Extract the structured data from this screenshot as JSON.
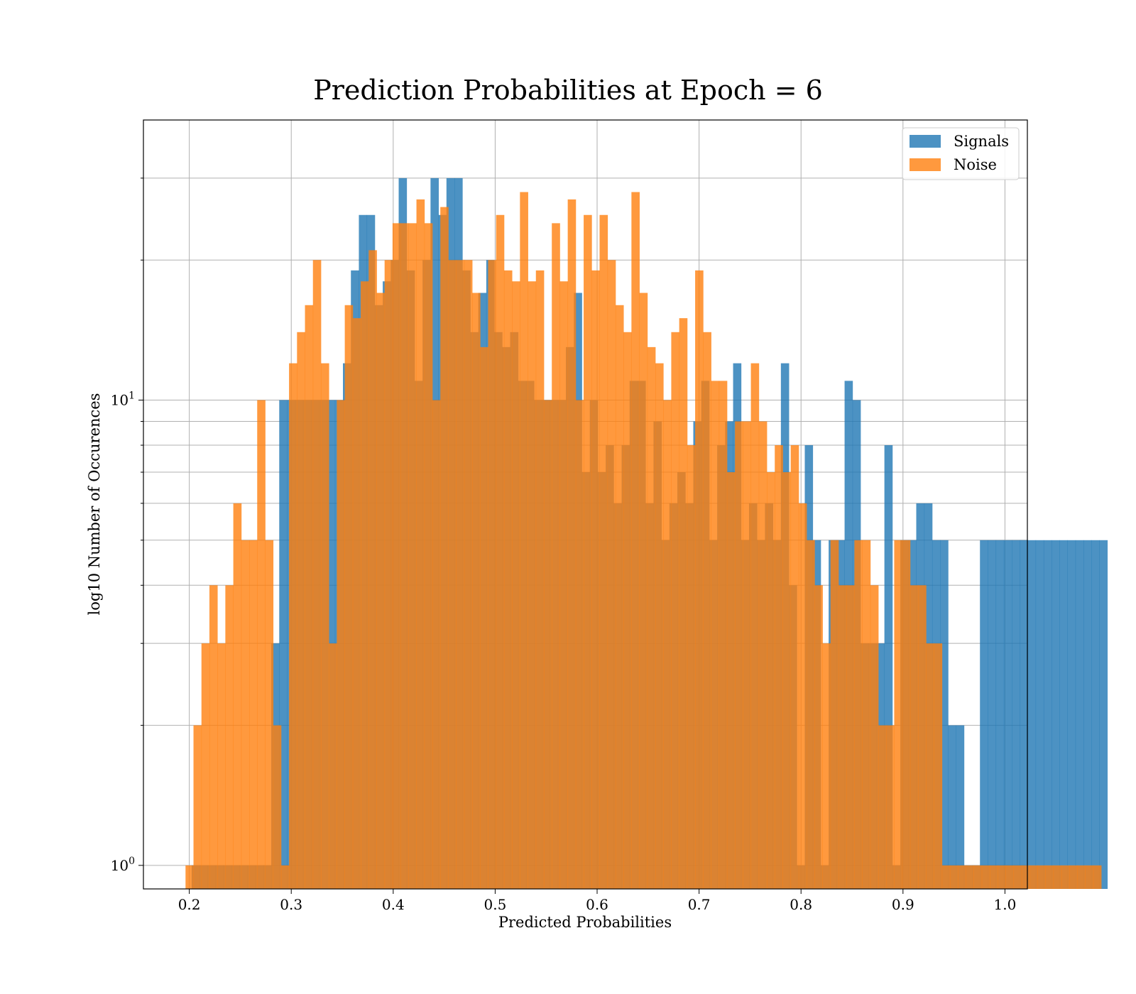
{
  "chart_data": {
    "type": "bar",
    "title": "Prediction Probabilities at Epoch = 6",
    "xlabel": "Predicted Probabilities",
    "ylabel": "log10 Number of Occurences",
    "xlim": [
      0.155,
      1.022
    ],
    "ylim": [
      0.89,
      40
    ],
    "yscale": "log",
    "grid": true,
    "legend_placement": "top-right",
    "x_ticks": [
      {
        "value": 0.2,
        "label": "0.2"
      },
      {
        "value": 0.3,
        "label": "0.3"
      },
      {
        "value": 0.4,
        "label": "0.4"
      },
      {
        "value": 0.5,
        "label": "0.5"
      },
      {
        "value": 0.6,
        "label": "0.6"
      },
      {
        "value": 0.7,
        "label": "0.7"
      },
      {
        "value": 0.8,
        "label": "0.8"
      },
      {
        "value": 0.9,
        "label": "0.9"
      },
      {
        "value": 1.0,
        "label": "1.0"
      }
    ],
    "y_major_ticks": [
      {
        "value": 1,
        "base": "10",
        "exp": "0"
      },
      {
        "value": 10,
        "base": "10",
        "exp": "1"
      }
    ],
    "y_minor_ticks": [
      2,
      3,
      4,
      5,
      6,
      7,
      8,
      9,
      20,
      30
    ],
    "series": [
      {
        "name": "Signals",
        "color": "#1f77b4",
        "opacity": 0.8,
        "bin_start": 0.2023,
        "bin_width": 0.00781,
        "values": [
          1,
          1,
          1,
          1,
          1,
          1,
          1,
          1,
          1,
          1,
          3,
          10,
          10,
          10,
          10,
          10,
          10,
          10,
          10,
          12,
          19,
          25,
          25,
          16,
          18,
          20,
          30,
          19,
          11,
          20,
          30,
          25,
          30,
          30,
          19,
          14,
          17,
          20,
          14,
          13,
          14,
          11,
          11,
          10,
          10,
          10,
          10,
          13,
          17,
          7,
          10,
          7,
          8,
          6,
          8,
          11,
          11,
          6,
          9,
          5,
          6,
          7,
          6,
          9,
          11,
          5,
          8,
          9,
          12,
          5,
          6,
          5,
          6,
          5,
          12,
          4,
          1,
          8,
          5,
          1,
          5,
          5,
          11,
          10,
          3,
          3,
          3,
          8,
          1,
          5,
          5,
          6,
          6,
          5,
          5,
          2,
          2,
          1,
          1,
          5,
          5,
          5,
          5,
          5,
          5,
          5,
          5,
          5,
          5,
          5,
          5,
          5,
          5,
          5,
          5
        ]
      },
      {
        "name": "Noise",
        "color": "#ff7f0e",
        "opacity": 0.8,
        "bin_start": 0.1963,
        "bin_width": 0.00781,
        "values": [
          1,
          2,
          3,
          4,
          3,
          4,
          6,
          5,
          5,
          10,
          5,
          2,
          1,
          12,
          14,
          16,
          20,
          12,
          3,
          10,
          16,
          15,
          18,
          21,
          17,
          20,
          24,
          24,
          24,
          27,
          24,
          10,
          26,
          20,
          20,
          20,
          17,
          13,
          20,
          25,
          19,
          18,
          28,
          18,
          19,
          10,
          24,
          18,
          27,
          10,
          25,
          19,
          25,
          20,
          16,
          14,
          28,
          17,
          13,
          12,
          10,
          14,
          15,
          8,
          19,
          14,
          11,
          11,
          7,
          9,
          9,
          12,
          9,
          7,
          8,
          7,
          8,
          6,
          5,
          4,
          3,
          5,
          4,
          4,
          5,
          5,
          4,
          2,
          2,
          5,
          5,
          4,
          4,
          3,
          3,
          1,
          1,
          1,
          1,
          1,
          1,
          1,
          1,
          1,
          1,
          1,
          1,
          1,
          1,
          1,
          1,
          1,
          1,
          1,
          1
        ]
      }
    ]
  }
}
